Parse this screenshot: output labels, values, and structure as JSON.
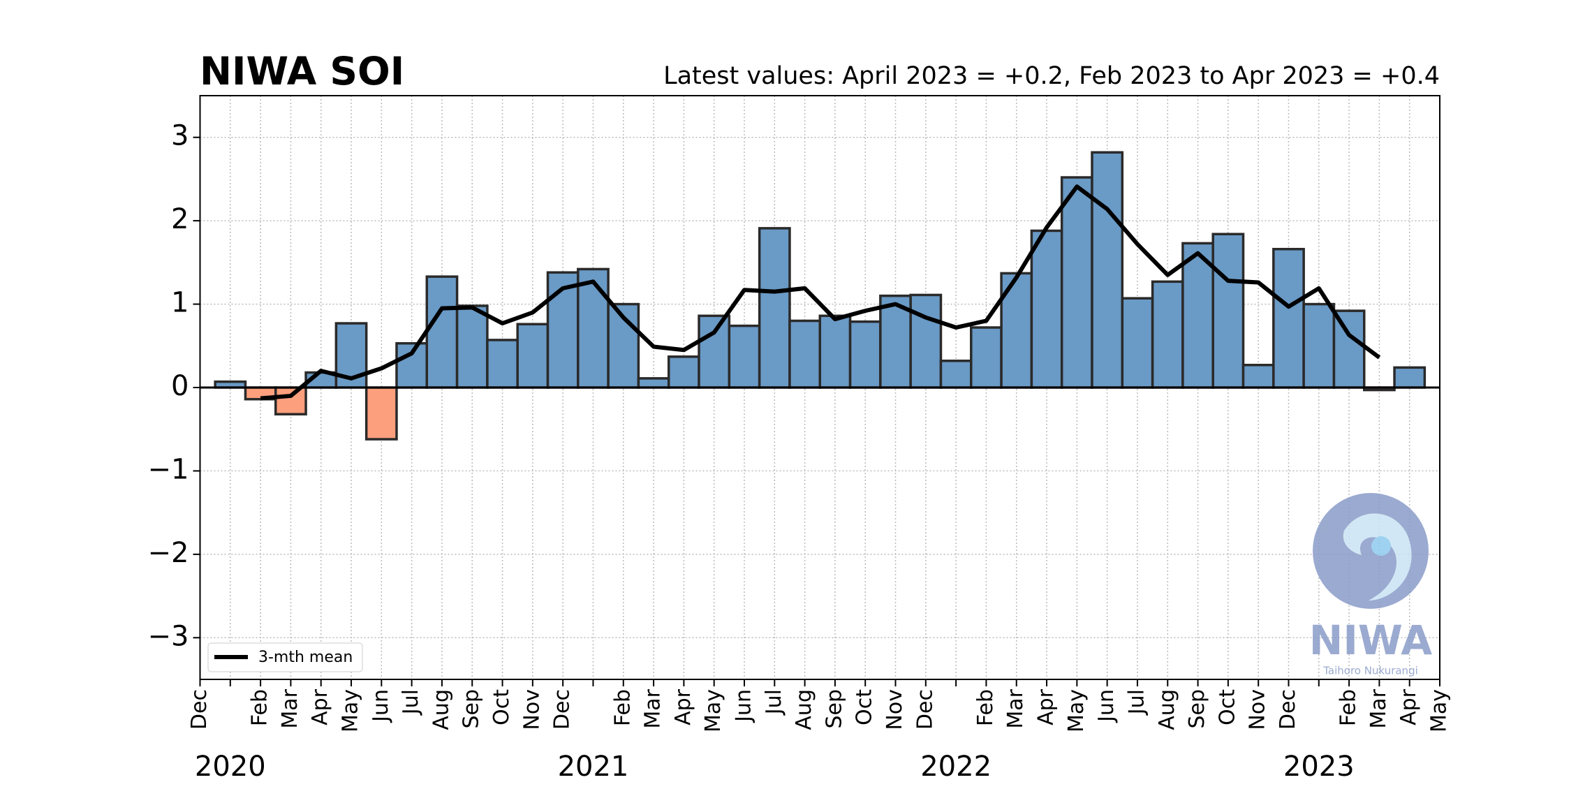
{
  "chart_data": {
    "type": "bar",
    "title": "NIWA SOI",
    "subtitle": "Latest values: April 2023 = +0.2, Feb 2023 to Apr 2023 = +0.4",
    "categories": [
      "Dec",
      null,
      "Feb",
      "Mar",
      "Apr",
      "May",
      "Jun",
      "Jul",
      "Aug",
      "Sep",
      "Oct",
      "Nov",
      "Dec",
      null,
      "Feb",
      "Mar",
      "Apr",
      "May",
      "Jun",
      "Jul",
      "Aug",
      "Sep",
      "Oct",
      "Nov",
      "Dec",
      null,
      "Feb",
      "Mar",
      "Apr",
      "May",
      "Jun",
      "Jul",
      "Aug",
      "Sep",
      "Oct",
      "Nov",
      "Dec",
      null,
      "Feb",
      "Mar",
      "Apr",
      "May"
    ],
    "years": [
      "2020",
      "2021",
      "2022",
      "2023"
    ],
    "values": [
      null,
      0.07,
      -0.14,
      -0.32,
      0.18,
      0.77,
      -0.62,
      0.53,
      1.33,
      0.98,
      0.57,
      0.76,
      1.38,
      1.42,
      1.0,
      0.11,
      0.37,
      0.86,
      0.74,
      1.91,
      0.8,
      0.86,
      0.79,
      1.1,
      1.11,
      0.32,
      0.72,
      1.37,
      1.88,
      2.52,
      2.82,
      1.07,
      1.27,
      1.73,
      1.84,
      0.27,
      1.66,
      1.0,
      0.92,
      -0.03,
      0.24,
      null
    ],
    "positive_color": "#6a9ac6",
    "negative_color": "#fc9f7c",
    "edge_color": "#2a2a2a",
    "mean": {
      "name": "3-mth mean",
      "color": "#000000",
      "values": [
        null,
        null,
        -0.13,
        -0.1,
        0.2,
        0.11,
        0.23,
        0.41,
        0.95,
        0.96,
        0.77,
        0.9,
        1.19,
        1.27,
        0.84,
        0.49,
        0.45,
        0.66,
        1.17,
        1.15,
        1.19,
        0.82,
        0.92,
        1.0,
        0.84,
        0.72,
        0.8,
        1.32,
        1.92,
        2.41,
        2.14,
        1.72,
        1.35,
        1.61,
        1.28,
        1.26,
        0.97,
        1.19,
        0.63,
        0.36,
        null,
        null
      ]
    },
    "ylim": [
      -3.5,
      3.5
    ],
    "yticks": [
      {
        "value": -3,
        "label": "−3"
      },
      {
        "value": -2,
        "label": "−2"
      },
      {
        "value": -1,
        "label": "−1"
      },
      0,
      1,
      2,
      3
    ],
    "grid": true,
    "legend": "lower left",
    "logo": {
      "name": "NIWA",
      "tagline": "Taihoro Nukurangi"
    }
  }
}
